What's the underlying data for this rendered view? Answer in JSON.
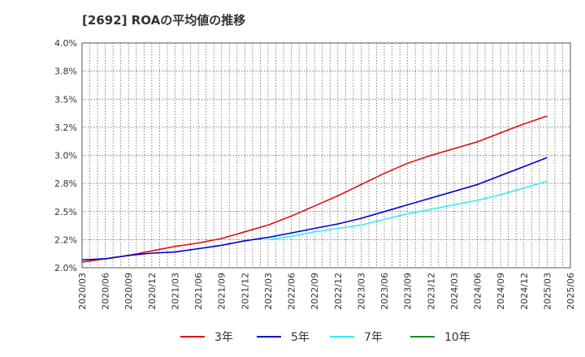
{
  "chart_data": {
    "type": "line",
    "title": "[2692]  ROAの平均値の推移",
    "xlabel": "",
    "ylabel": "",
    "x": [
      "2020/03",
      "2020/06",
      "2020/09",
      "2020/12",
      "2021/03",
      "2021/06",
      "2021/09",
      "2021/12",
      "2022/03",
      "2022/06",
      "2022/09",
      "2022/12",
      "2023/03",
      "2023/06",
      "2023/09",
      "2023/12",
      "2024/03",
      "2024/06",
      "2024/09",
      "2024/12",
      "2025/03",
      "2025/06"
    ],
    "y_ticks": [
      "2.0%",
      "2.2%",
      "2.5%",
      "2.8%",
      "3.0%",
      "3.2%",
      "3.5%",
      "3.8%",
      "4.0%"
    ],
    "ylim": [
      2.0,
      4.0
    ],
    "grid": true,
    "legend_position": "bottom",
    "series": [
      {
        "name": "3年",
        "color": "#dd1111",
        "values": [
          2.05,
          2.08,
          2.11,
          2.15,
          2.19,
          2.22,
          2.26,
          2.32,
          2.38,
          2.46,
          2.55,
          2.64,
          2.74,
          2.84,
          2.93,
          3.0,
          3.06,
          3.12,
          3.2,
          3.28,
          3.35,
          null
        ]
      },
      {
        "name": "5年",
        "color": "#0000cc",
        "values": [
          2.07,
          2.08,
          2.11,
          2.13,
          2.14,
          2.17,
          2.2,
          2.24,
          2.27,
          2.31,
          2.35,
          2.39,
          2.44,
          2.5,
          2.56,
          2.62,
          2.68,
          2.74,
          2.82,
          2.9,
          2.98,
          null
        ]
      },
      {
        "name": "7年",
        "color": "#33eeee",
        "values": [
          null,
          null,
          null,
          null,
          null,
          null,
          null,
          null,
          2.25,
          2.28,
          2.32,
          2.35,
          2.38,
          2.43,
          2.48,
          2.52,
          2.56,
          2.6,
          2.65,
          2.71,
          2.77,
          null
        ]
      },
      {
        "name": "10年",
        "color": "#228822",
        "values": [
          null,
          null,
          null,
          null,
          null,
          null,
          null,
          null,
          null,
          null,
          null,
          null,
          null,
          null,
          null,
          null,
          null,
          null,
          null,
          null,
          null,
          null
        ]
      }
    ]
  }
}
